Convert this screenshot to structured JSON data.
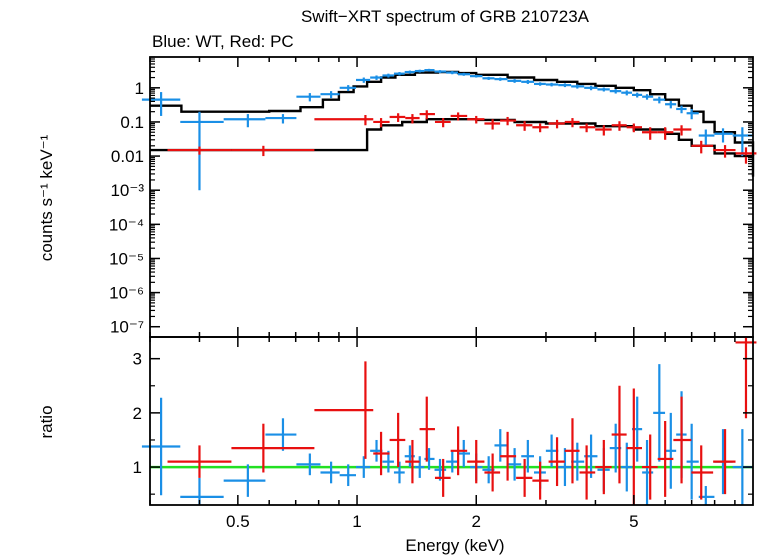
{
  "title": "Swift−XRT spectrum of GRB 210723A",
  "subtitle": "Blue: WT, Red: PC",
  "colors": {
    "wt": "#1a8fe6",
    "pc": "#e81010",
    "model": "#000000",
    "unity": "#22e022",
    "axis": "#000000"
  },
  "chart_data": [
    {
      "type": "scatter",
      "panel": "spectrum",
      "title": "Swift−XRT spectrum of GRB 210723A",
      "subtitle": "Blue: WT, Red: PC",
      "xlabel": "Energy (keV)",
      "ylabel": "counts s⁻¹ keV⁻¹",
      "xscale": "log",
      "yscale": "log",
      "xlim": [
        0.3,
        10
      ],
      "ylim": [
        5e-08,
        8
      ],
      "x_ticks": [
        0.5,
        1,
        2,
        5
      ],
      "x_tick_labels": [
        "0.5",
        "1",
        "2",
        "5"
      ],
      "y_tick_labels": [
        "1",
        "0.1",
        "0.01",
        "10⁻³",
        "10⁻⁴",
        "10⁻⁵",
        "10⁻⁶",
        "10⁻⁷"
      ],
      "series": [
        {
          "name": "WT",
          "x": [
            0.32,
            0.4,
            0.53,
            0.65,
            0.76,
            0.86,
            0.95,
            1.04,
            1.12,
            1.2,
            1.28,
            1.36,
            1.44,
            1.52,
            1.62,
            1.74,
            1.86,
            2.0,
            2.15,
            2.3,
            2.5,
            2.7,
            2.9,
            3.1,
            3.35,
            3.6,
            3.9,
            4.2,
            4.5,
            4.8,
            5.1,
            5.4,
            5.8,
            6.2,
            6.6,
            7.0,
            7.6,
            8.4,
            9.4
          ],
          "y": [
            0.45,
            0.1,
            0.12,
            0.13,
            0.55,
            0.65,
            1.0,
            1.7,
            2.0,
            2.3,
            2.6,
            2.9,
            3.1,
            3.3,
            3.0,
            2.8,
            2.5,
            2.2,
            1.9,
            1.8,
            1.6,
            1.5,
            1.3,
            1.25,
            1.2,
            1.1,
            1.0,
            0.9,
            0.8,
            0.72,
            0.62,
            0.55,
            0.45,
            0.33,
            0.24,
            0.18,
            0.04,
            0.045,
            0.04
          ],
          "yerr": [
            0.3,
            0.099,
            0.05,
            0.04,
            0.15,
            0.15,
            0.2,
            0.3,
            0.3,
            0.3,
            0.3,
            0.3,
            0.3,
            0.3,
            0.3,
            0.3,
            0.25,
            0.2,
            0.2,
            0.2,
            0.2,
            0.2,
            0.15,
            0.15,
            0.15,
            0.15,
            0.15,
            0.12,
            0.12,
            0.12,
            0.1,
            0.1,
            0.1,
            0.08,
            0.06,
            0.06,
            0.02,
            0.02,
            0.03
          ]
        },
        {
          "name": "PC",
          "x": [
            0.4,
            0.58,
            1.05,
            1.15,
            1.27,
            1.38,
            1.5,
            1.65,
            1.8,
            2.0,
            2.2,
            2.4,
            2.65,
            2.9,
            3.2,
            3.5,
            3.8,
            4.2,
            4.6,
            5.0,
            5.5,
            6.0,
            6.6,
            7.4,
            8.5,
            9.6
          ],
          "y": [
            0.015,
            0.015,
            0.12,
            0.1,
            0.14,
            0.13,
            0.17,
            0.1,
            0.15,
            0.12,
            0.09,
            0.11,
            0.08,
            0.07,
            0.09,
            0.1,
            0.07,
            0.06,
            0.08,
            0.07,
            0.05,
            0.05,
            0.06,
            0.02,
            0.015,
            0.012
          ],
          "yerr": [
            0.004,
            0.005,
            0.04,
            0.03,
            0.04,
            0.04,
            0.05,
            0.03,
            0.04,
            0.03,
            0.03,
            0.03,
            0.025,
            0.02,
            0.025,
            0.03,
            0.02,
            0.02,
            0.025,
            0.02,
            0.02,
            0.02,
            0.02,
            0.008,
            0.006,
            0.006
          ]
        }
      ],
      "model": [
        {
          "name": "WT model",
          "x": [
            0.3,
            0.36,
            0.48,
            0.6,
            0.72,
            0.82,
            0.9,
            0.98,
            1.06,
            1.15,
            1.25,
            1.4,
            1.6,
            1.8,
            2.0,
            2.4,
            2.8,
            3.2,
            3.6,
            4.0,
            4.5,
            5.0,
            5.5,
            6.0,
            6.5,
            7.0,
            7.5,
            8.0,
            9.0,
            10.0
          ],
          "y": [
            0.3,
            0.2,
            0.2,
            0.21,
            0.27,
            0.45,
            0.75,
            1.1,
            1.5,
            2.0,
            2.4,
            2.8,
            2.9,
            2.7,
            2.4,
            2.0,
            1.7,
            1.5,
            1.3,
            1.15,
            1.0,
            0.85,
            0.65,
            0.45,
            0.3,
            0.2,
            0.1,
            0.05,
            0.025,
            0.01
          ]
        },
        {
          "name": "PC model",
          "x": [
            0.3,
            1.0,
            1.06,
            1.15,
            1.3,
            1.5,
            1.75,
            2.0,
            2.5,
            3.0,
            4.0,
            5.0,
            6.0,
            6.5,
            7.0,
            8.0,
            9.0,
            10.0
          ],
          "y": [
            0.015,
            0.015,
            0.06,
            0.08,
            0.1,
            0.12,
            0.12,
            0.115,
            0.1,
            0.09,
            0.075,
            0.06,
            0.045,
            0.03,
            0.02,
            0.012,
            0.01,
            0.0025
          ]
        }
      ]
    },
    {
      "type": "scatter",
      "panel": "ratio",
      "xlabel": "Energy (keV)",
      "ylabel": "ratio",
      "xscale": "log",
      "yscale": "linear",
      "xlim": [
        0.3,
        10
      ],
      "ylim": [
        0.3,
        3.4
      ],
      "y_ticks": [
        1,
        2,
        3
      ],
      "y_tick_labels": [
        "1",
        "2",
        "3"
      ],
      "reference_line": 1,
      "series": [
        {
          "name": "WT",
          "x": [
            0.32,
            0.4,
            0.53,
            0.65,
            0.76,
            0.86,
            0.95,
            1.04,
            1.12,
            1.2,
            1.28,
            1.36,
            1.44,
            1.52,
            1.62,
            1.74,
            1.86,
            2.0,
            2.15,
            2.3,
            2.5,
            2.7,
            2.9,
            3.1,
            3.35,
            3.6,
            3.9,
            4.2,
            4.5,
            4.8,
            5.1,
            5.4,
            5.8,
            6.2,
            6.6,
            7.0,
            7.6,
            8.4,
            9.4
          ],
          "y": [
            1.38,
            0.45,
            0.75,
            1.6,
            1.05,
            0.9,
            0.85,
            1.0,
            1.3,
            1.1,
            0.9,
            1.2,
            1.0,
            1.15,
            0.95,
            1.1,
            1.25,
            1.0,
            0.95,
            1.4,
            1.05,
            1.2,
            0.9,
            1.3,
            1.0,
            1.1,
            1.2,
            0.95,
            1.35,
            1.0,
            1.7,
            0.9,
            2.0,
            1.3,
            1.6,
            1.1,
            0.45,
            1.1,
            1.0
          ],
          "yerr": [
            0.9,
            0.35,
            0.3,
            0.3,
            0.2,
            0.2,
            0.2,
            0.2,
            0.2,
            0.2,
            0.2,
            0.2,
            0.2,
            0.2,
            0.2,
            0.2,
            0.25,
            0.25,
            0.25,
            0.3,
            0.3,
            0.3,
            0.3,
            0.3,
            0.35,
            0.35,
            0.4,
            0.4,
            0.45,
            0.45,
            0.6,
            0.6,
            0.9,
            0.7,
            0.8,
            0.7,
            0.2,
            0.6,
            0.7
          ]
        },
        {
          "name": "PC",
          "x": [
            0.4,
            0.58,
            1.05,
            1.15,
            1.27,
            1.38,
            1.5,
            1.65,
            1.8,
            2.0,
            2.2,
            2.4,
            2.65,
            2.9,
            3.2,
            3.5,
            3.8,
            4.2,
            4.6,
            5.0,
            5.5,
            6.0,
            6.6,
            7.4,
            8.5,
            9.6
          ],
          "y": [
            1.1,
            1.35,
            2.05,
            1.25,
            1.5,
            1.1,
            1.7,
            0.8,
            1.3,
            1.1,
            0.9,
            1.2,
            0.8,
            0.75,
            1.1,
            1.3,
            0.9,
            1.0,
            1.6,
            1.35,
            1.0,
            1.15,
            1.5,
            0.9,
            1.1,
            3.3
          ],
          "yerr": [
            0.3,
            0.45,
            0.9,
            0.4,
            0.5,
            0.4,
            0.6,
            0.35,
            0.45,
            0.4,
            0.35,
            0.45,
            0.35,
            0.35,
            0.45,
            0.6,
            0.5,
            0.5,
            0.9,
            1.1,
            0.6,
            0.7,
            0.8,
            0.5,
            0.6,
            1.4
          ]
        }
      ]
    }
  ]
}
